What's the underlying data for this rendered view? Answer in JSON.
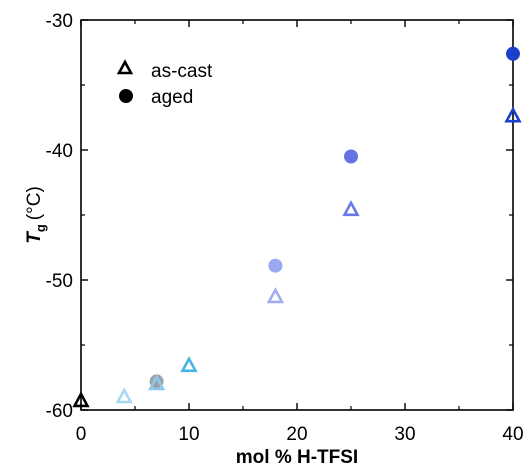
{
  "chart_data": {
    "type": "scatter",
    "title": "",
    "xlabel": "mol % H-TFSI",
    "ylabel": {
      "symbol": "T",
      "subscript": "g",
      "unit": "(°C)"
    },
    "xlim": [
      0,
      40
    ],
    "ylim": [
      -60,
      -30
    ],
    "x_ticks": [
      0,
      10,
      20,
      30,
      40
    ],
    "y_ticks": [
      -60,
      -50,
      -40,
      -30
    ],
    "grid": false,
    "legend_position": "top-left",
    "series": [
      {
        "name": "as-cast",
        "marker": "open-triangle",
        "points": [
          {
            "x": 0,
            "y": -59.3,
            "color": "#000000"
          },
          {
            "x": 4,
            "y": -59.0,
            "color": "#a8d8f0"
          },
          {
            "x": 7,
            "y": -58.0,
            "color": "#8ec8ec"
          },
          {
            "x": 10,
            "y": -56.6,
            "color": "#4ab2e6"
          },
          {
            "x": 18,
            "y": -51.3,
            "color": "#a3abf2"
          },
          {
            "x": 25,
            "y": -44.6,
            "color": "#6878e6"
          },
          {
            "x": 40,
            "y": -37.4,
            "color": "#1a3fc9"
          }
        ]
      },
      {
        "name": "aged",
        "marker": "filled-circle",
        "points": [
          {
            "x": 7,
            "y": -57.8,
            "color": "#9aa3a8"
          },
          {
            "x": 18,
            "y": -48.9,
            "color": "#9aa8f2"
          },
          {
            "x": 25,
            "y": -40.5,
            "color": "#6573e3"
          },
          {
            "x": 40,
            "y": -32.6,
            "color": "#1a3fc9"
          }
        ]
      }
    ]
  }
}
